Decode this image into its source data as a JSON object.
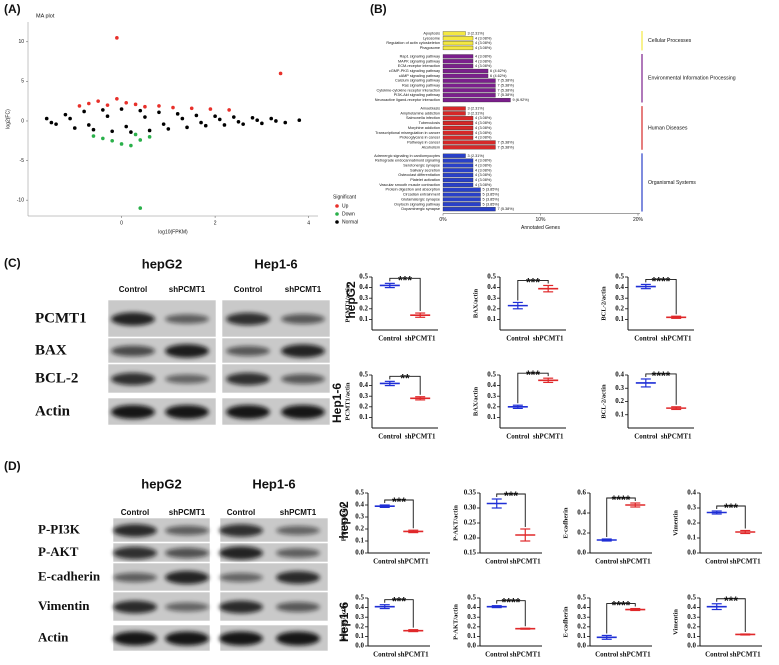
{
  "panel_labels": [
    "(A)",
    "(B)",
    "(C)",
    "(D)"
  ],
  "blots": [
    {
      "columns": [
        "hepG2",
        "Hep1-6"
      ],
      "lanes": [
        "Control",
        "shPCMT1"
      ],
      "rows": [
        "PCMT1",
        "BAX",
        "BCL-2",
        "Actin"
      ],
      "row_labels": [
        "hepG2",
        "Hep1-6"
      ]
    },
    {
      "columns": [
        "hepG2",
        "Hep1-6"
      ],
      "lanes": [
        "Control",
        "shPCMT1"
      ],
      "rows": [
        "P-PI3K",
        "P-AKT",
        "E-cadherin",
        "Vimentin",
        "Actin"
      ],
      "row_labels": [
        "hepG2",
        "Hep1-6"
      ]
    }
  ],
  "chart_data": [
    {
      "type": "scatter",
      "title": "MA plot",
      "xlabel": "log10(FPKM)",
      "ylabel": "log2(FC)",
      "legend_title": "Significant",
      "xlim": [
        -2,
        4.2
      ],
      "ylim": [
        -12,
        12.5
      ],
      "xticks": [
        0,
        2,
        4
      ],
      "yticks": [
        -10,
        -5,
        0,
        5,
        10
      ],
      "series": [
        {
          "name": "Up",
          "color": "#e8302a",
          "x": [
            -0.9,
            -0.7,
            -0.5,
            -0.3,
            -0.1,
            0.1,
            0.3,
            0.5,
            0.8,
            1.1,
            1.5,
            1.9,
            2.3,
            -0.1,
            3.4
          ],
          "values": [
            1.9,
            2.2,
            2.5,
            2.0,
            2.8,
            2.3,
            2.1,
            1.8,
            1.9,
            1.7,
            1.6,
            1.5,
            1.4,
            10.5,
            6.0
          ]
        },
        {
          "name": "Down",
          "color": "#2ab04a",
          "x": [
            -0.6,
            -0.4,
            -0.2,
            0.0,
            0.2,
            0.4,
            0.6,
            0.3,
            0.4
          ],
          "values": [
            -1.9,
            -2.2,
            -2.5,
            -2.9,
            -3.1,
            -2.4,
            -2.0,
            -1.7,
            -11.0
          ]
        },
        {
          "name": "Normal",
          "color": "#000000",
          "x": [
            -1.6,
            -1.4,
            -1.2,
            -1.0,
            -0.8,
            -0.6,
            -0.4,
            -0.2,
            0,
            0.2,
            0.4,
            0.6,
            0.8,
            1.0,
            1.2,
            1.4,
            1.6,
            1.8,
            2.0,
            2.2,
            2.4,
            2.6,
            2.8,
            3.0,
            3.2,
            3.5,
            3.8,
            -1.5,
            -1.1,
            -0.7,
            -0.3,
            0.1,
            0.5,
            0.9,
            1.3,
            1.7,
            2.1,
            2.5,
            2.9,
            3.3
          ],
          "values": [
            0.3,
            -0.4,
            0.8,
            -0.9,
            1.2,
            -1.1,
            1.4,
            -1.3,
            1.5,
            -1.4,
            1.3,
            -1.2,
            1.1,
            -1.0,
            0.9,
            -0.8,
            0.7,
            -0.6,
            0.6,
            -0.5,
            0.5,
            -0.4,
            0.4,
            -0.3,
            0.3,
            -0.2,
            0.1,
            -0.2,
            0.3,
            -0.5,
            0.6,
            -0.7,
            0.5,
            -0.4,
            0.3,
            -0.2,
            0.2,
            -0.1,
            0.1,
            0
          ]
        }
      ]
    },
    {
      "type": "barh",
      "xlabel": "Annotated Genes",
      "xlim": [
        0,
        20
      ],
      "xticks": [
        {
          "value": 0,
          "label": "0%"
        },
        {
          "value": 10,
          "label": "10%"
        },
        {
          "value": 20,
          "label": "20%"
        }
      ],
      "series": [
        {
          "name": "Cellular Processes",
          "color": "#f4e842",
          "categories": [
            "Apoptosis",
            "Lysosome",
            "Regulation of actin cytoskeleton",
            "Phagosome"
          ],
          "values": [
            2.31,
            3.08,
            3.08,
            3.08
          ],
          "value_labels": [
            "3 (2.31%)",
            "4 (3.08%)",
            "4 (3.08%)",
            "4 (3.08%)"
          ]
        },
        {
          "name": "Environmental Information Processing",
          "color": "#7b1f8c",
          "categories": [
            "Rap1 signaling pathway",
            "MAPK signaling pathway",
            "ECM-receptor interaction",
            "cGMP-PKG signaling pathway",
            "cAMP signaling pathway",
            "Calcium signaling pathway",
            "Ras signaling pathway",
            "Cytokine-cytokine receptor interaction",
            "PI3K-Akt signaling pathway",
            "Neuroactive ligand-receptor interaction"
          ],
          "values": [
            3.08,
            3.08,
            3.08,
            4.62,
            4.62,
            5.38,
            5.38,
            5.38,
            5.38,
            6.92
          ],
          "value_labels": [
            "4 (3.08%)",
            "4 (3.08%)",
            "4 (3.08%)",
            "6 (4.62%)",
            "6 (4.62%)",
            "7 (5.38%)",
            "7 (5.38%)",
            "7 (5.38%)",
            "7 (5.38%)",
            "9 (6.92%)"
          ]
        },
        {
          "name": "Human Diseases",
          "color": "#d62828",
          "categories": [
            "Amoebiasis",
            "Amphetamine addiction",
            "Salmonella infection",
            "Tuberculosis",
            "Morphine addiction",
            "Transcriptional misregulation in cancer",
            "Proteoglycans in cancer",
            "Pathways in cancer",
            "Alcoholism"
          ],
          "values": [
            2.31,
            2.31,
            3.08,
            3.08,
            3.08,
            3.08,
            3.08,
            5.38,
            5.38
          ],
          "value_labels": [
            "3 (2.31%)",
            "3 (2.31%)",
            "4 (3.08%)",
            "4 (3.08%)",
            "4 (3.08%)",
            "4 (3.08%)",
            "4 (3.08%)",
            "7 (5.38%)",
            "7 (5.38%)"
          ]
        },
        {
          "name": "Organismal Systems",
          "color": "#2940c8",
          "categories": [
            "Adrenergic signaling in cardiomyocytes",
            "Retrograde endocannabinoid signaling",
            "Serotonergic synapse",
            "Salivary secretion",
            "Osteoclast differentiation",
            "Platelet activation",
            "Vascular smooth muscle contraction",
            "Protein digestion and absorption",
            "Circadian entrainment",
            "Glutamatergic synapse",
            "Oxytocin signaling pathway",
            "Dopaminergic synapse"
          ],
          "values": [
            2.31,
            3.08,
            3.08,
            3.08,
            3.08,
            3.08,
            3.08,
            3.85,
            3.85,
            3.85,
            3.85,
            5.38
          ],
          "value_labels": [
            "3 (2.31%)",
            "4 (3.08%)",
            "4 (3.08%)",
            "4 (3.08%)",
            "4 (3.08%)",
            "4 (3.08%)",
            "4 (3.08%)",
            "5 (3.85%)",
            "5 (3.85%)",
            "5 (3.85%)",
            "5 (3.85%)",
            "7 (5.38%)"
          ]
        }
      ]
    },
    {
      "type": "dot",
      "ylabel": "PCMT1/actin",
      "categories": [
        "Control",
        "shPCMT1"
      ],
      "values": [
        0.42,
        0.14
      ],
      "errors": [
        0.02,
        0.02
      ],
      "colors": [
        "#1f2fd6",
        "#e0282a"
      ],
      "ylim": [
        0,
        0.5
      ],
      "yticks": [
        0.1,
        0.2,
        0.3,
        0.4,
        0.5
      ],
      "significance": "***"
    },
    {
      "type": "dot",
      "ylabel": "BAX/actin",
      "categories": [
        "Control",
        "shPCMT1"
      ],
      "values": [
        0.23,
        0.39
      ],
      "errors": [
        0.03,
        0.03
      ],
      "colors": [
        "#1f2fd6",
        "#e0282a"
      ],
      "ylim": [
        0,
        0.5
      ],
      "yticks": [
        0.1,
        0.2,
        0.3,
        0.4,
        0.5
      ],
      "significance": "***"
    },
    {
      "type": "dot",
      "ylabel": "BCL-2/actin",
      "categories": [
        "Control",
        "shPCMT1"
      ],
      "values": [
        0.41,
        0.12
      ],
      "errors": [
        0.02,
        0.01
      ],
      "colors": [
        "#1f2fd6",
        "#e0282a"
      ],
      "ylim": [
        0,
        0.5
      ],
      "yticks": [
        0.1,
        0.2,
        0.3,
        0.4,
        0.5
      ],
      "significance": "****"
    },
    {
      "type": "dot",
      "ylabel": "PCMT1/actin",
      "categories": [
        "Control",
        "shPCMT1"
      ],
      "values": [
        0.42,
        0.28
      ],
      "errors": [
        0.02,
        0.015
      ],
      "colors": [
        "#1f2fd6",
        "#e0282a"
      ],
      "ylim": [
        0,
        0.5
      ],
      "yticks": [
        0.1,
        0.2,
        0.3,
        0.4,
        0.5
      ],
      "significance": "**"
    },
    {
      "type": "dot",
      "ylabel": "BAX/actin",
      "categories": [
        "Control",
        "shPCMT1"
      ],
      "values": [
        0.2,
        0.45
      ],
      "errors": [
        0.015,
        0.02
      ],
      "colors": [
        "#1f2fd6",
        "#e0282a"
      ],
      "ylim": [
        0,
        0.5
      ],
      "yticks": [
        0.1,
        0.2,
        0.3,
        0.4,
        0.5
      ],
      "significance": "***"
    },
    {
      "type": "dot",
      "ylabel": "BCL-2/actin",
      "categories": [
        "Control",
        "shPCMT1"
      ],
      "values": [
        0.34,
        0.15
      ],
      "errors": [
        0.03,
        0.01
      ],
      "colors": [
        "#1f2fd6",
        "#e0282a"
      ],
      "ylim": [
        0,
        0.4
      ],
      "yticks": [
        0.1,
        0.2,
        0.3,
        0.4
      ],
      "significance": "****"
    },
    {
      "type": "dot",
      "ylabel": "P-PI3K/actin",
      "categories": [
        "Control",
        "shPCMT1"
      ],
      "values": [
        0.39,
        0.18
      ],
      "errors": [
        0.01,
        0.01
      ],
      "colors": [
        "#1f2fd6",
        "#e0282a"
      ],
      "ylim": [
        0,
        0.5
      ],
      "yticks": [
        {
          "value": 0,
          "label": "0.0"
        },
        0.1,
        0.2,
        0.3,
        0.4,
        0.5
      ],
      "significance": "***"
    },
    {
      "type": "dot",
      "ylabel": "P-AKT/actin",
      "categories": [
        "Control",
        "shPCMT1"
      ],
      "values": [
        0.315,
        0.21
      ],
      "errors": [
        0.015,
        0.02
      ],
      "colors": [
        "#1f2fd6",
        "#e0282a"
      ],
      "ylim": [
        0.15,
        0.35
      ],
      "yticks": [
        0.15,
        {
          "value": 0.2,
          "label": "0.20"
        },
        0.25,
        {
          "value": 0.3,
          "label": "0.30"
        },
        0.35
      ],
      "significance": "***"
    },
    {
      "type": "dot",
      "ylabel": "E-cadherin",
      "categories": [
        "Control",
        "shPCMT1"
      ],
      "values": [
        0.13,
        0.48
      ],
      "errors": [
        0.01,
        0.02
      ],
      "colors": [
        "#1f2fd6",
        "#e0282a"
      ],
      "ylim": [
        0,
        0.6
      ],
      "yticks": [
        {
          "value": 0,
          "label": "0.0"
        },
        0.2,
        0.4,
        0.6
      ],
      "significance": "****"
    },
    {
      "type": "dot",
      "ylabel": "Vimentin",
      "categories": [
        "Control",
        "shPCMT1"
      ],
      "values": [
        0.27,
        0.14
      ],
      "errors": [
        0.01,
        0.01
      ],
      "colors": [
        "#1f2fd6",
        "#e0282a"
      ],
      "ylim": [
        0,
        0.4
      ],
      "yticks": [
        {
          "value": 0,
          "label": "0.0"
        },
        0.1,
        0.2,
        0.3,
        0.4
      ],
      "significance": "***"
    },
    {
      "type": "dot",
      "ylabel": "P-PI3K/actin",
      "categories": [
        "Control",
        "shPCMT1"
      ],
      "values": [
        0.41,
        0.16
      ],
      "errors": [
        0.02,
        0.01
      ],
      "colors": [
        "#1f2fd6",
        "#e0282a"
      ],
      "ylim": [
        0,
        0.5
      ],
      "yticks": [
        {
          "value": 0,
          "label": "0.0"
        },
        0.1,
        0.2,
        0.3,
        0.4,
        0.5
      ],
      "significance": "***"
    },
    {
      "type": "dot",
      "ylabel": "P-AKT/actin",
      "categories": [
        "Control",
        "shPCMT1"
      ],
      "values": [
        0.41,
        0.18
      ],
      "errors": [
        0.01,
        0.005
      ],
      "colors": [
        "#1f2fd6",
        "#e0282a"
      ],
      "ylim": [
        0,
        0.5
      ],
      "yticks": [
        {
          "value": 0,
          "label": "0.0"
        },
        0.1,
        0.2,
        0.3,
        0.4,
        0.5
      ],
      "significance": "****"
    },
    {
      "type": "dot",
      "ylabel": "E-cadherin",
      "categories": [
        "Control",
        "shPCMT1"
      ],
      "values": [
        0.09,
        0.38
      ],
      "errors": [
        0.02,
        0.01
      ],
      "colors": [
        "#1f2fd6",
        "#e0282a"
      ],
      "ylim": [
        0,
        0.5
      ],
      "yticks": [
        {
          "value": 0,
          "label": "0.0"
        },
        0.1,
        0.2,
        0.3,
        0.4,
        0.5
      ],
      "significance": "****"
    },
    {
      "type": "dot",
      "ylabel": "Vimentin",
      "categories": [
        "Control",
        "shPCMT1"
      ],
      "values": [
        0.41,
        0.12
      ],
      "errors": [
        0.03,
        0.005
      ],
      "colors": [
        "#1f2fd6",
        "#e0282a"
      ],
      "ylim": [
        0,
        0.5
      ],
      "yticks": [
        {
          "value": 0,
          "label": "0.0"
        },
        0.1,
        0.2,
        0.3,
        0.4,
        0.5
      ],
      "significance": "***"
    }
  ]
}
